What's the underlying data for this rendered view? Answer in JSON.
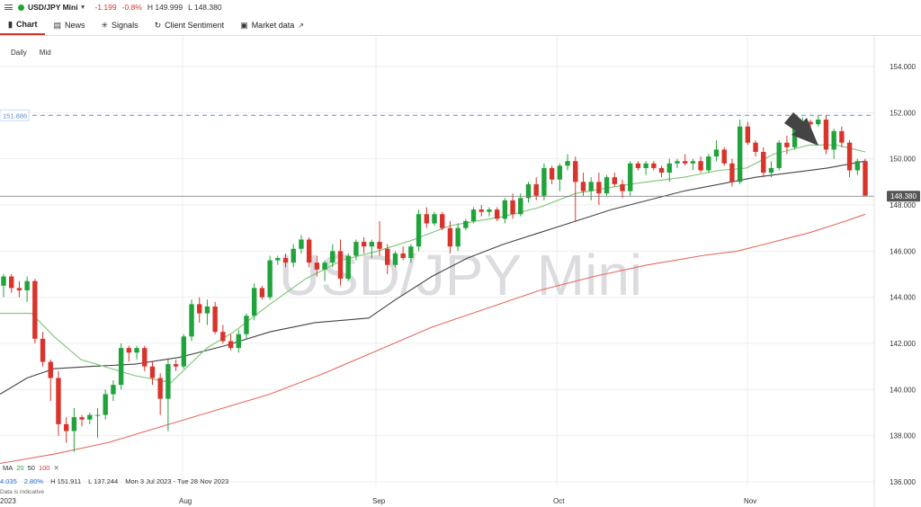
{
  "instrument": {
    "symbol": "USD/JPY Mini",
    "change": "-1.199",
    "change_pct": "-0.8%",
    "high": "H 149.999",
    "low": "L 148.380"
  },
  "tabs": [
    {
      "label": "Chart",
      "icon": "chart-bars-icon"
    },
    {
      "label": "News",
      "icon": "news-icon"
    },
    {
      "label": "Signals",
      "icon": "signals-icon"
    },
    {
      "label": "Client Sentiment",
      "icon": "sentiment-icon"
    },
    {
      "label": "Market data",
      "icon": "external-link-icon"
    }
  ],
  "toolbar": {
    "interval": "Daily",
    "price_type": "Mid"
  },
  "watermark": "USD/JPY Mini",
  "ma_legend": {
    "label": "MA",
    "periods": [
      "20",
      "50",
      "100"
    ],
    "close": "✕"
  },
  "bottom_info": {
    "values": [
      "4.035",
      "2.80%",
      "H 151.911",
      "L 137.244",
      "Mon 3 Jul 2023 - Tue 28 Nov 2023"
    ],
    "note": "Data is indicative",
    "year": "2023"
  },
  "colors": {
    "up": "#21a33c",
    "down": "#d9342b",
    "ma20": "#7cc576",
    "ma50": "#444444",
    "ma100": "#e56a60",
    "hline": "#5b8fd6"
  },
  "chart_data": {
    "type": "candlestick",
    "y_ticks": [
      "154.000",
      "152.000",
      "150.000",
      "148.000",
      "146.000",
      "144.000",
      "142.000",
      "140.000",
      "138.000",
      "136.000"
    ],
    "ylim": [
      136,
      154
    ],
    "x_labels": [
      "Aug",
      "Sep",
      "Oct",
      "Nov"
    ],
    "current_price": "148.380",
    "level_line": "151.886",
    "annotation": "arrow pointing to high",
    "ohlc": [
      [
        144.5,
        145.0,
        144.0,
        144.9
      ],
      [
        144.9,
        145.0,
        144.2,
        144.4
      ],
      [
        144.4,
        144.7,
        144.0,
        144.3
      ],
      [
        144.3,
        144.9,
        143.8,
        144.7
      ],
      [
        144.7,
        144.8,
        142.0,
        142.2
      ],
      [
        142.2,
        142.5,
        141.0,
        141.2
      ],
      [
        141.2,
        141.3,
        139.5,
        140.5
      ],
      [
        140.5,
        140.8,
        138.0,
        138.5
      ],
      [
        138.5,
        138.8,
        137.7,
        138.2
      ],
      [
        138.2,
        139.2,
        137.3,
        138.8
      ],
      [
        138.8,
        138.9,
        138.4,
        138.7
      ],
      [
        138.7,
        139.0,
        138.5,
        138.9
      ],
      [
        138.9,
        139.2,
        137.9,
        138.9
      ],
      [
        138.9,
        140.0,
        138.7,
        139.8
      ],
      [
        139.8,
        140.4,
        139.5,
        140.2
      ],
      [
        140.2,
        142.0,
        140.0,
        141.8
      ],
      [
        141.8,
        141.9,
        141.2,
        141.6
      ],
      [
        141.6,
        141.9,
        141.3,
        141.8
      ],
      [
        141.8,
        141.9,
        140.8,
        141.0
      ],
      [
        141.0,
        141.2,
        140.2,
        140.5
      ],
      [
        140.5,
        140.7,
        138.9,
        139.6
      ],
      [
        139.6,
        141.3,
        138.2,
        141.1
      ],
      [
        141.1,
        141.3,
        140.8,
        141.0
      ],
      [
        141.0,
        142.4,
        140.9,
        142.3
      ],
      [
        142.3,
        143.9,
        142.1,
        143.7
      ],
      [
        143.7,
        144.0,
        142.9,
        143.3
      ],
      [
        143.3,
        143.9,
        142.8,
        143.6
      ],
      [
        143.6,
        143.8,
        142.4,
        142.5
      ],
      [
        142.5,
        142.8,
        142.0,
        142.1
      ],
      [
        142.1,
        142.4,
        141.7,
        141.8
      ],
      [
        141.8,
        142.6,
        141.6,
        142.4
      ],
      [
        142.4,
        143.3,
        142.2,
        143.2
      ],
      [
        143.2,
        144.6,
        143.0,
        144.4
      ],
      [
        144.4,
        144.5,
        143.9,
        144.0
      ],
      [
        144.0,
        145.8,
        143.9,
        145.6
      ],
      [
        145.6,
        145.8,
        145.4,
        145.7
      ],
      [
        145.7,
        145.9,
        145.3,
        145.5
      ],
      [
        145.5,
        146.3,
        145.3,
        146.1
      ],
      [
        146.1,
        146.7,
        145.9,
        146.5
      ],
      [
        146.5,
        146.6,
        145.3,
        145.5
      ],
      [
        145.5,
        145.8,
        144.9,
        145.2
      ],
      [
        145.2,
        145.6,
        144.7,
        145.5
      ],
      [
        145.5,
        146.3,
        145.3,
        146.0
      ],
      [
        146.0,
        146.5,
        144.5,
        144.8
      ],
      [
        144.8,
        145.9,
        144.7,
        145.8
      ],
      [
        145.8,
        146.5,
        145.6,
        146.4
      ],
      [
        146.4,
        146.6,
        145.9,
        146.2
      ],
      [
        146.2,
        146.5,
        145.7,
        146.4
      ],
      [
        146.4,
        147.3,
        145.8,
        146.1
      ],
      [
        146.1,
        146.3,
        145.0,
        145.4
      ],
      [
        145.4,
        146.0,
        145.3,
        145.9
      ],
      [
        145.9,
        146.2,
        145.6,
        145.7
      ],
      [
        145.7,
        146.3,
        145.5,
        146.2
      ],
      [
        146.2,
        147.8,
        146.0,
        147.6
      ],
      [
        147.6,
        147.9,
        147.0,
        147.2
      ],
      [
        147.2,
        147.7,
        147.1,
        147.6
      ],
      [
        147.6,
        147.7,
        146.9,
        147.0
      ],
      [
        147.0,
        147.3,
        145.9,
        146.2
      ],
      [
        146.2,
        147.2,
        146.0,
        147.0
      ],
      [
        147.0,
        147.4,
        146.9,
        147.3
      ],
      [
        147.3,
        147.9,
        147.2,
        147.8
      ],
      [
        147.8,
        148.0,
        147.5,
        147.7
      ],
      [
        147.7,
        147.9,
        147.5,
        147.8
      ],
      [
        147.8,
        147.9,
        147.3,
        147.4
      ],
      [
        147.4,
        148.3,
        147.2,
        148.2
      ],
      [
        148.2,
        148.5,
        147.4,
        147.6
      ],
      [
        147.6,
        148.5,
        147.5,
        148.3
      ],
      [
        148.3,
        149.0,
        148.1,
        148.9
      ],
      [
        148.9,
        149.2,
        148.2,
        148.4
      ],
      [
        148.4,
        149.8,
        148.2,
        149.6
      ],
      [
        149.6,
        149.7,
        148.9,
        149.1
      ],
      [
        149.1,
        149.8,
        148.6,
        149.7
      ],
      [
        149.7,
        150.2,
        149.5,
        149.9
      ],
      [
        149.9,
        150.1,
        147.3,
        149.0
      ],
      [
        149.0,
        149.4,
        148.4,
        148.6
      ],
      [
        148.6,
        149.2,
        148.2,
        149.0
      ],
      [
        149.0,
        149.4,
        148.0,
        148.5
      ],
      [
        148.5,
        149.3,
        148.4,
        149.2
      ],
      [
        149.2,
        149.4,
        148.8,
        148.9
      ],
      [
        148.9,
        149.1,
        148.3,
        148.6
      ],
      [
        148.6,
        149.9,
        148.4,
        149.8
      ],
      [
        149.8,
        149.9,
        149.5,
        149.6
      ],
      [
        149.6,
        149.9,
        149.3,
        149.8
      ],
      [
        149.8,
        149.9,
        149.5,
        149.6
      ],
      [
        149.6,
        149.7,
        149.2,
        149.4
      ],
      [
        149.4,
        150.0,
        149.0,
        149.8
      ],
      [
        149.8,
        150.0,
        149.6,
        149.9
      ],
      [
        149.9,
        150.2,
        149.7,
        149.8
      ],
      [
        149.8,
        150.0,
        149.5,
        149.9
      ],
      [
        149.9,
        150.1,
        149.4,
        149.5
      ],
      [
        149.5,
        150.2,
        149.4,
        150.1
      ],
      [
        150.1,
        150.8,
        149.9,
        150.4
      ],
      [
        150.4,
        150.5,
        149.7,
        149.8
      ],
      [
        149.8,
        150.0,
        148.8,
        149.0
      ],
      [
        149.0,
        151.7,
        148.9,
        151.4
      ],
      [
        151.4,
        151.6,
        150.6,
        150.7
      ],
      [
        150.7,
        150.8,
        150.1,
        150.3
      ],
      [
        150.3,
        150.5,
        149.2,
        149.4
      ],
      [
        149.4,
        149.9,
        149.2,
        149.6
      ],
      [
        149.6,
        150.8,
        149.5,
        150.7
      ],
      [
        150.7,
        151.0,
        150.2,
        150.5
      ],
      [
        150.5,
        151.4,
        150.4,
        151.3
      ],
      [
        151.3,
        151.8,
        151.0,
        151.6
      ],
      [
        151.6,
        151.7,
        151.3,
        151.5
      ],
      [
        151.5,
        151.9,
        151.4,
        151.7
      ],
      [
        151.7,
        151.9,
        150.2,
        150.4
      ],
      [
        150.4,
        151.3,
        150.0,
        151.2
      ],
      [
        151.2,
        151.4,
        150.5,
        150.7
      ],
      [
        150.7,
        150.8,
        149.2,
        149.5
      ],
      [
        149.5,
        150.0,
        149.3,
        149.9
      ],
      [
        149.9,
        150.0,
        148.4,
        148.4
      ]
    ],
    "ma20": [
      [
        0,
        143.3
      ],
      [
        35,
        143.3
      ],
      [
        60,
        142.3
      ],
      [
        90,
        141.3
      ],
      [
        150,
        140.6
      ],
      [
        190,
        140.3
      ],
      [
        230,
        141.8
      ],
      [
        260,
        142.5
      ],
      [
        300,
        143.7
      ],
      [
        340,
        144.8
      ],
      [
        380,
        145.6
      ],
      [
        420,
        146.0
      ],
      [
        460,
        146.5
      ],
      [
        500,
        147.1
      ],
      [
        560,
        147.5
      ],
      [
        600,
        147.9
      ],
      [
        640,
        148.5
      ],
      [
        700,
        148.9
      ],
      [
        760,
        149.2
      ],
      [
        800,
        149.5
      ],
      [
        830,
        149.6
      ],
      [
        860,
        150.2
      ],
      [
        900,
        150.6
      ],
      [
        930,
        150.6
      ],
      [
        962,
        150.3
      ]
    ],
    "ma50": [
      [
        0,
        139.8
      ],
      [
        30,
        140.5
      ],
      [
        60,
        140.9
      ],
      [
        100,
        141.0
      ],
      [
        150,
        141.1
      ],
      [
        200,
        141.4
      ],
      [
        250,
        141.9
      ],
      [
        300,
        142.5
      ],
      [
        350,
        142.9
      ],
      [
        410,
        143.1
      ],
      [
        440,
        143.9
      ],
      [
        480,
        144.9
      ],
      [
        520,
        145.7
      ],
      [
        560,
        146.3
      ],
      [
        600,
        146.8
      ],
      [
        640,
        147.3
      ],
      [
        680,
        147.8
      ],
      [
        720,
        148.2
      ],
      [
        760,
        148.6
      ],
      [
        800,
        148.9
      ],
      [
        840,
        149.2
      ],
      [
        880,
        149.4
      ],
      [
        920,
        149.6
      ],
      [
        962,
        149.9
      ]
    ],
    "ma100": [
      [
        0,
        136.8
      ],
      [
        60,
        137.2
      ],
      [
        120,
        137.7
      ],
      [
        180,
        138.4
      ],
      [
        240,
        139.1
      ],
      [
        300,
        139.8
      ],
      [
        360,
        140.7
      ],
      [
        420,
        141.7
      ],
      [
        480,
        142.7
      ],
      [
        540,
        143.5
      ],
      [
        600,
        144.3
      ],
      [
        660,
        144.9
      ],
      [
        720,
        145.4
      ],
      [
        780,
        145.8
      ],
      [
        820,
        146.0
      ],
      [
        860,
        146.4
      ],
      [
        900,
        146.8
      ],
      [
        940,
        147.3
      ],
      [
        962,
        147.6
      ]
    ]
  }
}
